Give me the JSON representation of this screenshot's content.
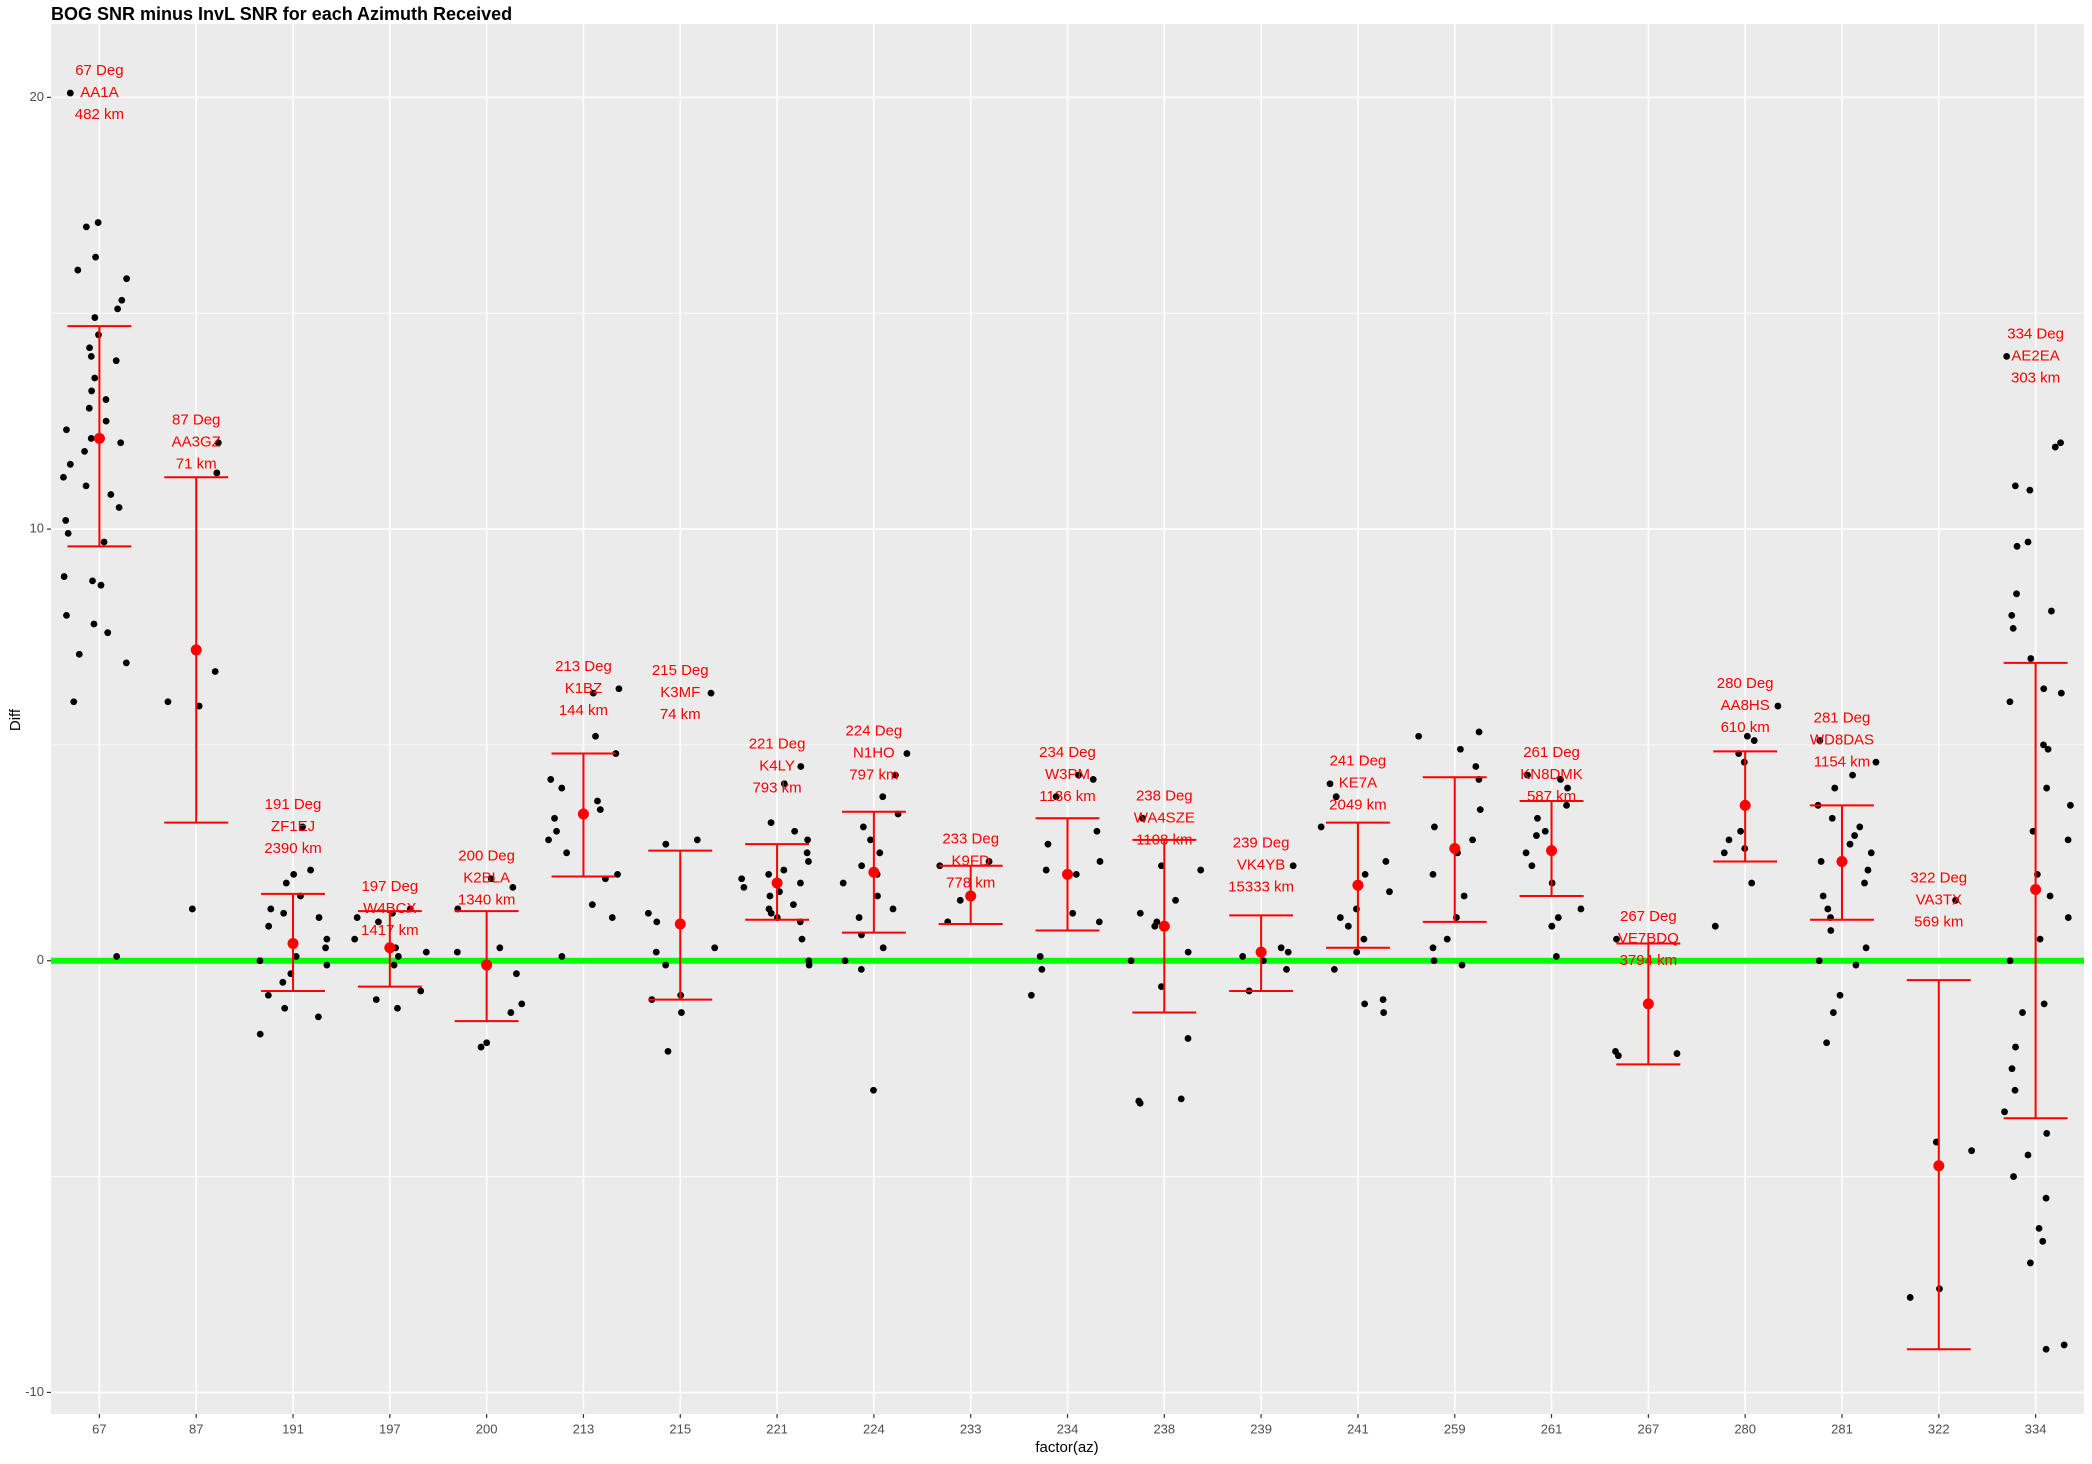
{
  "chart_data": {
    "type": "errorbar",
    "title": "BOG SNR minus InvL SNR for each Azimuth Received",
    "x_label": "factor(az)",
    "y_label": "Diff",
    "categories": [
      "67",
      "87",
      "191",
      "197",
      "200",
      "213",
      "215",
      "221",
      "224",
      "233",
      "234",
      "238",
      "239",
      "241",
      "259",
      "261",
      "267",
      "280",
      "281",
      "322",
      "334"
    ],
    "means": [
      12.1,
      7.2,
      0.4,
      0.3,
      -0.1,
      3.4,
      0.85,
      1.8,
      2.05,
      1.5,
      2.0,
      0.8,
      0.2,
      1.75,
      2.6,
      2.55,
      -1.0,
      3.6,
      2.3,
      -4.75,
      1.65
    ],
    "lower": [
      9.6,
      3.2,
      -0.7,
      -0.6,
      -1.4,
      1.95,
      -0.9,
      0.95,
      0.65,
      0.85,
      0.7,
      -1.2,
      -0.7,
      0.3,
      0.9,
      1.5,
      -2.4,
      2.3,
      0.95,
      -9.0,
      -3.65
    ],
    "upper": [
      14.7,
      11.2,
      1.55,
      1.15,
      1.15,
      4.8,
      2.55,
      2.7,
      3.45,
      2.2,
      3.3,
      2.8,
      1.05,
      3.2,
      4.25,
      3.7,
      0.4,
      4.85,
      3.6,
      -0.45,
      6.9
    ],
    "annotations": [
      [
        "67 Deg",
        "AA1A",
        "482 km"
      ],
      [
        "87 Deg",
        "AA3GZ",
        "71 km"
      ],
      [
        "191 Deg",
        "ZF1EJ",
        "2390 km"
      ],
      [
        "197 Deg",
        "W4BCX",
        "1417 km"
      ],
      [
        "200 Deg",
        "K2BLA",
        "1340 km"
      ],
      [
        "213 Deg",
        "K1BZ",
        "144 km"
      ],
      [
        "215 Deg",
        "K3MF",
        "74 km"
      ],
      [
        "221 Deg",
        "K4LY",
        "793 km"
      ],
      [
        "224 Deg",
        "N1HO",
        "797 km"
      ],
      [
        "233 Deg",
        "K9FD",
        "778 km"
      ],
      [
        "234 Deg",
        "W3PM",
        "1136 km"
      ],
      [
        "238 Deg",
        "WA4SZE",
        "1108 km"
      ],
      [
        "239 Deg",
        "VK4YB",
        "15333 km"
      ],
      [
        "241 Deg",
        "KE7A",
        "2049 km"
      ],
      null,
      [
        "261 Deg",
        "KN8DMK",
        "587 km"
      ],
      [
        "267 Deg",
        "VE7BDQ",
        "3794 km"
      ],
      [
        "280 Deg",
        "AA8HS",
        "610 km"
      ],
      [
        "281 Deg",
        "WD8DAS",
        "1154 km"
      ],
      [
        "322 Deg",
        "VA3TX",
        "569 km"
      ],
      [
        "334 Deg",
        "AE2EA",
        "303 km"
      ]
    ],
    "points": [
      [
        20.1,
        17.1,
        17.0,
        16.3,
        16.0,
        15.8,
        15.3,
        15.1,
        14.9,
        14.5,
        14.2,
        14.0,
        13.9,
        13.5,
        13.2,
        13.0,
        12.8,
        12.5,
        12.3,
        12.1,
        12.0,
        11.8,
        11.5,
        11.2,
        11.0,
        10.8,
        10.5,
        10.2,
        9.9,
        9.7,
        8.9,
        8.8,
        8.7,
        8.0,
        7.8,
        7.6,
        7.1,
        6.9,
        6.0,
        0.1
      ],
      [
        12.0,
        11.3,
        6.7,
        6.0,
        5.9,
        1.2
      ],
      [
        3.1,
        2.1,
        2.0,
        1.8,
        1.5,
        1.2,
        1.1,
        1.0,
        0.8,
        0.5,
        0.3,
        0.1,
        0,
        -0.1,
        -0.3,
        -0.5,
        -0.8,
        -1.1,
        -1.3,
        -1.7
      ],
      [
        1.2,
        1.1,
        1.0,
        0.9,
        0.5,
        0.3,
        0.2,
        0.1,
        -0.1,
        -0.7,
        -0.9,
        -1.1
      ],
      [
        1.9,
        1.7,
        1.2,
        0.3,
        0.2,
        -0.3,
        -1.0,
        -1.2,
        -1.9,
        -2.0
      ],
      [
        6.3,
        6.2,
        5.2,
        4.8,
        4.2,
        4.0,
        3.7,
        3.5,
        3.3,
        3.0,
        2.8,
        2.5,
        2.0,
        1.9,
        1.3,
        1.0,
        0.1
      ],
      [
        6.2,
        2.8,
        2.7,
        1.1,
        0.9,
        0.3,
        0.2,
        -0.1,
        -0.8,
        -0.9,
        -1.2,
        -2.1
      ],
      [
        4.5,
        4.1,
        3.2,
        3.0,
        2.8,
        2.5,
        2.3,
        2.1,
        2.0,
        1.9,
        1.8,
        1.7,
        1.6,
        1.5,
        1.3,
        1.2,
        1.1,
        1.0,
        0.9,
        0.5,
        0,
        -0.1
      ],
      [
        4.8,
        4.3,
        3.8,
        3.4,
        3.1,
        2.8,
        2.5,
        2.2,
        2.0,
        1.8,
        1.5,
        1.2,
        1.0,
        0.6,
        0.3,
        0,
        -0.2,
        -3.0
      ],
      [
        2.3,
        2.2,
        1.5,
        1.4,
        0.9
      ],
      [
        4.3,
        4.2,
        3.8,
        3.0,
        2.7,
        2.3,
        2.1,
        2.0,
        1.1,
        0.9,
        0.1,
        -0.2,
        -0.8
      ],
      [
        3.3,
        2.2,
        2.1,
        1.4,
        1.1,
        0.9,
        0.8,
        0.2,
        0,
        -0.6,
        -1.8,
        -3.2,
        -3.3,
        -3.25
      ],
      [
        2.2,
        0.3,
        0.2,
        0.1,
        0,
        -0.2,
        -0.7
      ],
      [
        4.1,
        3.8,
        3.1,
        2.3,
        2.0,
        1.6,
        1.2,
        1.0,
        0.8,
        0.5,
        0.2,
        -0.2,
        -0.9,
        -1.0,
        -1.2
      ],
      [
        5.3,
        5.2,
        4.9,
        4.5,
        4.2,
        3.5,
        3.1,
        2.8,
        2.5,
        2.0,
        1.5,
        1.0,
        0.5,
        0.3,
        0,
        -0.1
      ],
      [
        4.3,
        4.2,
        4.0,
        3.6,
        3.3,
        3.0,
        2.9,
        2.5,
        2.2,
        1.8,
        1.2,
        1.0,
        0.8,
        0.1
      ],
      [
        0.5,
        -2.1,
        -2.2,
        -2.15
      ],
      [
        5.9,
        5.2,
        5.1,
        4.8,
        4.6,
        3.0,
        2.8,
        2.6,
        2.5,
        1.8,
        0.8
      ],
      [
        5.1,
        4.6,
        4.3,
        4.0,
        3.6,
        3.3,
        3.1,
        2.9,
        2.7,
        2.5,
        2.3,
        2.1,
        1.8,
        1.5,
        1.2,
        1.0,
        0.7,
        0.3,
        0,
        -0.1,
        -0.8,
        -1.2,
        -1.9
      ],
      [
        1.4,
        -4.2,
        -4.4,
        -7.6,
        -7.8
      ],
      [
        14.0,
        12.0,
        11.9,
        11.0,
        10.9,
        9.7,
        9.6,
        8.5,
        8.1,
        8.0,
        7.7,
        7.0,
        6.3,
        6.2,
        6.0,
        5.0,
        4.9,
        4.0,
        3.6,
        3.0,
        2.8,
        2.0,
        1.5,
        1.0,
        0.5,
        0,
        -1.0,
        -1.2,
        -2.0,
        -2.5,
        -3.0,
        -3.5,
        -4.0,
        -4.5,
        -5.0,
        -5.5,
        -6.2,
        -6.5,
        -7.0,
        -8.9,
        -9.0
      ]
    ],
    "ylim": [
      -10.5,
      21.7
    ],
    "yticks": [
      -10,
      0,
      10,
      20
    ],
    "minor_yticks": [
      -5,
      5,
      15
    ],
    "hline": 0,
    "hline_color": "#00FF00",
    "color": "#FF0000",
    "point_color": "#000000",
    "grid": true
  }
}
